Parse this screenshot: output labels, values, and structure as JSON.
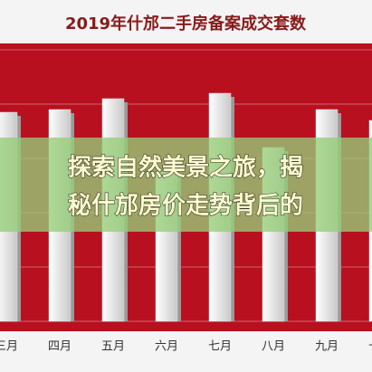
{
  "chart_data": {
    "type": "bar",
    "title": "2019年什邡二手房备案成交套数",
    "categories": [
      "三月",
      "四月",
      "五月",
      "六月",
      "七月",
      "八月",
      "九月",
      "十月"
    ],
    "values": [
      77,
      78,
      82,
      55,
      84,
      64,
      78,
      74
    ],
    "color": "#ffffff",
    "background": "#b8101f",
    "ylim": [
      0,
      100
    ],
    "grid": true
  },
  "overlay": {
    "lines": [
      "探索自然美景之旅，揭",
      "秘什邡房价走势背后的"
    ]
  }
}
